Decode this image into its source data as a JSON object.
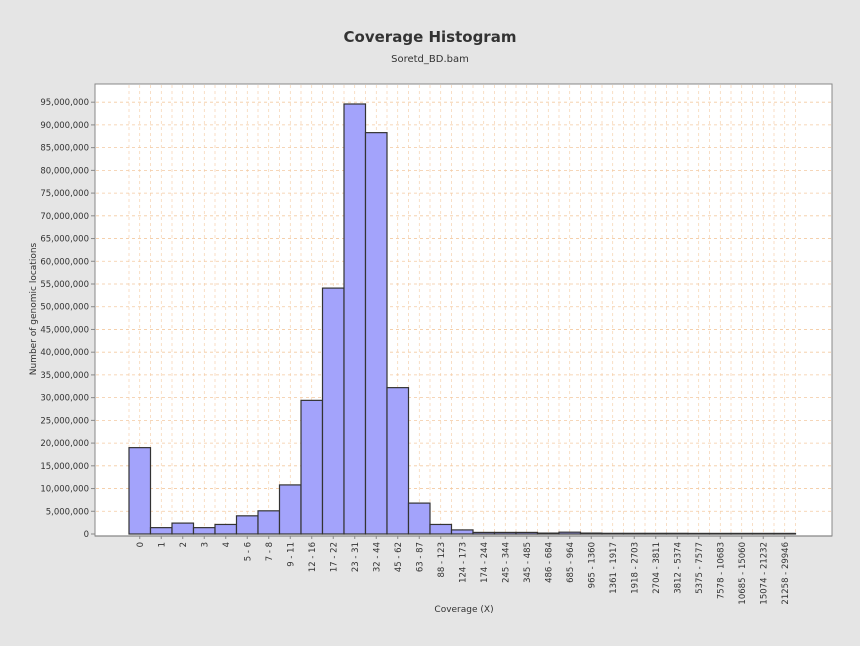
{
  "chart_data": {
    "type": "bar",
    "title": "Coverage Histogram",
    "subtitle": "Soretd_BD.bam",
    "xlabel": "Coverage (X)",
    "ylabel": "Number of genomic locations",
    "ylim": [
      0,
      99000000
    ],
    "yticks": [
      0,
      5000000,
      10000000,
      15000000,
      20000000,
      25000000,
      30000000,
      35000000,
      40000000,
      45000000,
      50000000,
      55000000,
      60000000,
      65000000,
      70000000,
      75000000,
      80000000,
      85000000,
      90000000,
      95000000
    ],
    "ytick_labels": [
      "0",
      "5,000,000",
      "10,000,000",
      "15,000,000",
      "20,000,000",
      "25,000,000",
      "30,000,000",
      "35,000,000",
      "40,000,000",
      "45,000,000",
      "50,000,000",
      "55,000,000",
      "60,000,000",
      "65,000,000",
      "70,000,000",
      "75,000,000",
      "80,000,000",
      "85,000,000",
      "90,000,000",
      "95,000,000"
    ],
    "categories": [
      "0",
      "1",
      "2",
      "3",
      "4",
      "5 - 6",
      "7 - 8",
      "9 - 11",
      "12 - 16",
      "17 - 22",
      "23 - 31",
      "32 - 44",
      "45 - 62",
      "63 - 87",
      "88 - 123",
      "124 - 173",
      "174 - 244",
      "245 - 344",
      "345 - 485",
      "486 - 684",
      "685 - 964",
      "965 - 1360",
      "1361 - 1917",
      "1918 - 2703",
      "2704 - 3811",
      "3812 - 5374",
      "5375 - 7577",
      "7578 - 10683",
      "10685 - 15060",
      "15074 - 21232",
      "21258 - 29946"
    ],
    "values": [
      19000000,
      1400000,
      2400000,
      1400000,
      2100000,
      4000000,
      5100000,
      10800000,
      29400000,
      54100000,
      94600000,
      88300000,
      32200000,
      6800000,
      2100000,
      900000,
      350000,
      350000,
      350000,
      200000,
      400000,
      200000,
      150000,
      150000,
      150000,
      150000,
      100000,
      100000,
      100000,
      40000,
      20000
    ],
    "grid": true,
    "legend": "none",
    "colors": {
      "background": "#e5e5e5",
      "plot_background": "#ffffff",
      "bar_fill": "#a3a3fb",
      "bar_stroke": "#333333",
      "grid": "#f4c9a0",
      "axis": "#888888",
      "text": "#333333"
    }
  }
}
